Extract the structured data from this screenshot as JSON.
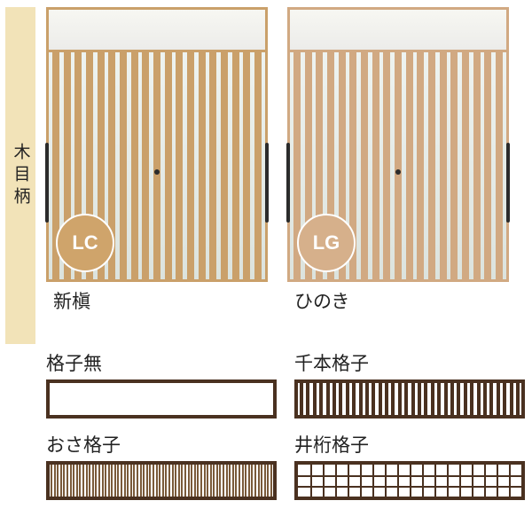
{
  "category": {
    "label": "木目柄",
    "strip_color": "#f2e3b8"
  },
  "doors": [
    {
      "code": "LC",
      "caption": "新槇",
      "frame_color": "#caa06a",
      "swatch_color": "#cfa46b",
      "slat_count": 19
    },
    {
      "code": "LG",
      "caption": "ひのき",
      "frame_color": "#d1a982",
      "swatch_color": "#d6b08b",
      "slat_count": 19
    }
  ],
  "patterns": [
    {
      "name": "格子無",
      "type": "plain",
      "frame_color": "#4a3120"
    },
    {
      "name": "千本格子",
      "type": "senbon",
      "frame_color": "#4a3120",
      "bars": 34
    },
    {
      "name": "おさ格子",
      "type": "osa",
      "frame_color": "#4a3120",
      "bars": 70
    },
    {
      "name": "井桁格子",
      "type": "iketa",
      "frame_color": "#4a3120",
      "cols": 18,
      "rows": 3
    }
  ]
}
